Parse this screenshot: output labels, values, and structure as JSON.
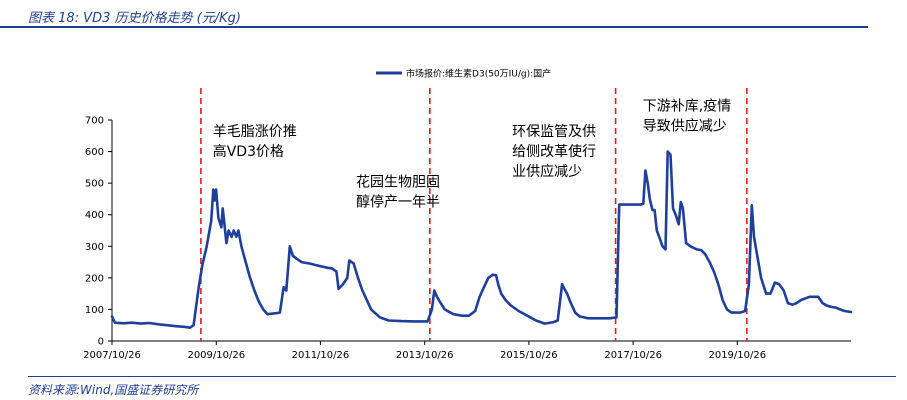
{
  "header": {
    "title": "图表 18:  VD3 历史价格走势  (元/Kg)"
  },
  "footer": {
    "source": "资料来源:Wind,国盛证券研究所"
  },
  "chart_data": {
    "type": "line",
    "title": "",
    "xlabel": "",
    "ylabel": "",
    "ylim": [
      0,
      700
    ],
    "yticks": [
      0,
      100,
      200,
      300,
      400,
      500,
      600,
      700
    ],
    "x_range": [
      "2007-10-26",
      "2021-12-31"
    ],
    "xtick_labels": [
      {
        "date": "2007-10-26",
        "label": "2007/10/26"
      },
      {
        "date": "2009-10-26",
        "label": "2009/10/26"
      },
      {
        "date": "2011-10-26",
        "label": "2011/10/26"
      },
      {
        "date": "2013-10-26",
        "label": "2013/10/26"
      },
      {
        "date": "2015-10-26",
        "label": "2015/10/26"
      },
      {
        "date": "2017-10-26",
        "label": "2017/10/26"
      },
      {
        "date": "2019-10-26",
        "label": "2019/10/26"
      }
    ],
    "legend": {
      "label": "市场报价:维生素D3(50万IU/g):国产",
      "placement": "top-center"
    },
    "line_color": "#1f3f9a",
    "marker_color": "#e02020",
    "grid": false,
    "series": [
      {
        "name": "市场报价:维生素D3(50万IU/g):国产",
        "points": [
          [
            "2007-10-26",
            78
          ],
          [
            "2007-11-15",
            58
          ],
          [
            "2008-01-15",
            56
          ],
          [
            "2008-03-15",
            58
          ],
          [
            "2008-05-15",
            55
          ],
          [
            "2008-07-15",
            57
          ],
          [
            "2008-09-15",
            53
          ],
          [
            "2008-11-15",
            50
          ],
          [
            "2009-01-15",
            47
          ],
          [
            "2009-03-15",
            45
          ],
          [
            "2009-04-25",
            42
          ],
          [
            "2009-05-20",
            50
          ],
          [
            "2009-06-25",
            170
          ],
          [
            "2009-07-20",
            240
          ],
          [
            "2009-08-20",
            300
          ],
          [
            "2009-09-20",
            380
          ],
          [
            "2009-10-05",
            480
          ],
          [
            "2009-10-15",
            445
          ],
          [
            "2009-10-25",
            480
          ],
          [
            "2009-11-10",
            390
          ],
          [
            "2009-12-01",
            360
          ],
          [
            "2009-12-10",
            420
          ],
          [
            "2009-12-20",
            380
          ],
          [
            "2010-01-05",
            310
          ],
          [
            "2010-01-20",
            350
          ],
          [
            "2010-02-10",
            330
          ],
          [
            "2010-02-25",
            350
          ],
          [
            "2010-03-15",
            330
          ],
          [
            "2010-03-30",
            350
          ],
          [
            "2010-04-20",
            300
          ],
          [
            "2010-05-20",
            250
          ],
          [
            "2010-06-20",
            200
          ],
          [
            "2010-07-20",
            160
          ],
          [
            "2010-08-20",
            125
          ],
          [
            "2010-09-20",
            100
          ],
          [
            "2010-10-20",
            85
          ],
          [
            "2010-12-20",
            88
          ],
          [
            "2011-01-15",
            90
          ],
          [
            "2011-02-10",
            170
          ],
          [
            "2011-03-01",
            160
          ],
          [
            "2011-03-25",
            300
          ],
          [
            "2011-04-15",
            270
          ],
          [
            "2011-05-15",
            260
          ],
          [
            "2011-06-15",
            250
          ],
          [
            "2011-08-15",
            245
          ],
          [
            "2011-10-15",
            238
          ],
          [
            "2011-12-15",
            232
          ],
          [
            "2012-01-15",
            230
          ],
          [
            "2012-02-15",
            220
          ],
          [
            "2012-03-01",
            165
          ],
          [
            "2012-04-01",
            180
          ],
          [
            "2012-05-01",
            200
          ],
          [
            "2012-05-15",
            255
          ],
          [
            "2012-06-15",
            245
          ],
          [
            "2012-07-15",
            200
          ],
          [
            "2012-08-15",
            160
          ],
          [
            "2012-09-15",
            130
          ],
          [
            "2012-10-15",
            100
          ],
          [
            "2012-12-15",
            75
          ],
          [
            "2013-02-15",
            65
          ],
          [
            "2013-05-15",
            63
          ],
          [
            "2013-08-15",
            62
          ],
          [
            "2013-10-15",
            62
          ],
          [
            "2013-11-15",
            62
          ],
          [
            "2013-12-15",
            100
          ],
          [
            "2014-01-01",
            160
          ],
          [
            "2014-01-20",
            140
          ],
          [
            "2014-02-15",
            120
          ],
          [
            "2014-03-15",
            100
          ],
          [
            "2014-05-15",
            85
          ],
          [
            "2014-07-15",
            80
          ],
          [
            "2014-09-01",
            80
          ],
          [
            "2014-10-15",
            95
          ],
          [
            "2014-11-15",
            140
          ],
          [
            "2014-12-15",
            170
          ],
          [
            "2015-01-15",
            200
          ],
          [
            "2015-02-15",
            210
          ],
          [
            "2015-03-10",
            208
          ],
          [
            "2015-03-25",
            180
          ],
          [
            "2015-04-15",
            150
          ],
          [
            "2015-05-15",
            130
          ],
          [
            "2015-06-15",
            115
          ],
          [
            "2015-08-15",
            95
          ],
          [
            "2015-10-15",
            80
          ],
          [
            "2015-12-15",
            65
          ],
          [
            "2016-02-15",
            55
          ],
          [
            "2016-04-15",
            60
          ],
          [
            "2016-05-15",
            65
          ],
          [
            "2016-06-15",
            180
          ],
          [
            "2016-07-01",
            165
          ],
          [
            "2016-07-20",
            150
          ],
          [
            "2016-08-15",
            120
          ],
          [
            "2016-09-15",
            90
          ],
          [
            "2016-10-15",
            78
          ],
          [
            "2016-12-15",
            72
          ],
          [
            "2017-02-15",
            72
          ],
          [
            "2017-05-15",
            72
          ],
          [
            "2017-07-01",
            75
          ],
          [
            "2017-07-20",
            432
          ],
          [
            "2017-12-15",
            432
          ],
          [
            "2018-01-05",
            435
          ],
          [
            "2018-01-20",
            540
          ],
          [
            "2018-02-05",
            500
          ],
          [
            "2018-02-20",
            450
          ],
          [
            "2018-03-10",
            415
          ],
          [
            "2018-03-25",
            415
          ],
          [
            "2018-04-10",
            350
          ],
          [
            "2018-05-01",
            325
          ],
          [
            "2018-05-20",
            300
          ],
          [
            "2018-06-10",
            290
          ],
          [
            "2018-06-25",
            600
          ],
          [
            "2018-07-15",
            590
          ],
          [
            "2018-08-01",
            420
          ],
          [
            "2018-08-20",
            400
          ],
          [
            "2018-09-10",
            370
          ],
          [
            "2018-09-25",
            440
          ],
          [
            "2018-10-10",
            420
          ],
          [
            "2018-11-01",
            310
          ],
          [
            "2018-12-01",
            300
          ],
          [
            "2019-01-15",
            290
          ],
          [
            "2019-02-15",
            288
          ],
          [
            "2019-03-15",
            275
          ],
          [
            "2019-04-15",
            250
          ],
          [
            "2019-05-15",
            220
          ],
          [
            "2019-06-15",
            180
          ],
          [
            "2019-07-15",
            130
          ],
          [
            "2019-08-15",
            100
          ],
          [
            "2019-09-15",
            90
          ],
          [
            "2019-11-15",
            90
          ],
          [
            "2019-12-20",
            95
          ],
          [
            "2020-01-15",
            180
          ],
          [
            "2020-02-05",
            430
          ],
          [
            "2020-02-20",
            330
          ],
          [
            "2020-03-10",
            280
          ],
          [
            "2020-04-10",
            200
          ],
          [
            "2020-05-15",
            150
          ],
          [
            "2020-06-15",
            150
          ],
          [
            "2020-07-15",
            185
          ],
          [
            "2020-08-15",
            180
          ],
          [
            "2020-09-15",
            160
          ],
          [
            "2020-10-15",
            120
          ],
          [
            "2020-11-15",
            115
          ],
          [
            "2020-12-15",
            120
          ],
          [
            "2021-01-15",
            130
          ],
          [
            "2021-03-15",
            140
          ],
          [
            "2021-05-15",
            140
          ],
          [
            "2021-06-15",
            120
          ],
          [
            "2021-07-15",
            112
          ],
          [
            "2021-08-15",
            108
          ],
          [
            "2021-09-15",
            106
          ],
          [
            "2021-10-15",
            100
          ],
          [
            "2021-11-15",
            95
          ],
          [
            "2021-12-31",
            92
          ]
        ]
      }
    ],
    "vlines": [
      "2009-07-10",
      "2013-12-01",
      "2017-06-25",
      "2020-01-01"
    ],
    "annotations": [
      {
        "lines": [
          "羊毛脂涨价推",
          "高VD3价格"
        ],
        "anchor_date": "2009-10-01",
        "anchor_value": 650
      },
      {
        "lines": [
          "花园生物胆固",
          "醇停产一年半"
        ],
        "anchor_date": "2012-07-01",
        "anchor_value": 490
      },
      {
        "lines": [
          "环保监管及供",
          "给侧改革使行",
          "业供应减少"
        ],
        "anchor_date": "2015-07-01",
        "anchor_value": 650
      },
      {
        "lines": [
          "下游补库,疫情",
          "导致供应减少"
        ],
        "anchor_date": "2018-01-01",
        "anchor_value": 730
      }
    ]
  }
}
